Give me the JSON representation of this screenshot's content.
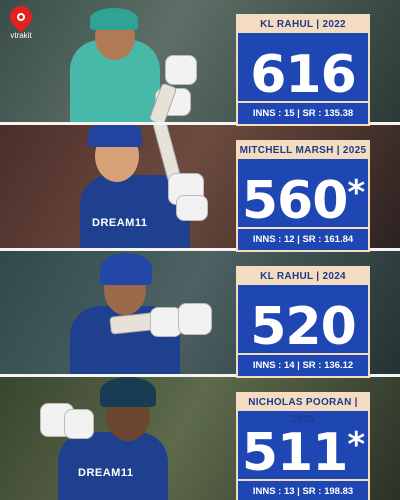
{
  "brand": {
    "logo_text": "vtrakit",
    "logo_icon": "fire-drop-icon",
    "accent": "#e0231f"
  },
  "colors": {
    "box_blue": "#1f47b4",
    "box_cream": "#f3dcc0",
    "header_text": "#1f3a8a"
  },
  "entries": [
    {
      "header": "KL RAHUL | 2022",
      "runs": "616",
      "star": "",
      "footer": "INNS : 15 | SR : 135.38",
      "jersey": ""
    },
    {
      "header": "MITCHELL MARSH | 2025",
      "runs": "560",
      "star": "*",
      "footer": "INNS : 12 | SR : 161.84",
      "jersey": "DREAM11"
    },
    {
      "header": "KL RAHUL | 2024",
      "runs": "520",
      "star": "",
      "footer": "INNS : 14 | SR : 136.12",
      "jersey": ""
    },
    {
      "header": "NICHOLAS POORAN | 2025",
      "runs": "511",
      "star": "*",
      "footer": "INNS : 13 | SR : 198.83",
      "jersey": "DREAM11"
    }
  ]
}
